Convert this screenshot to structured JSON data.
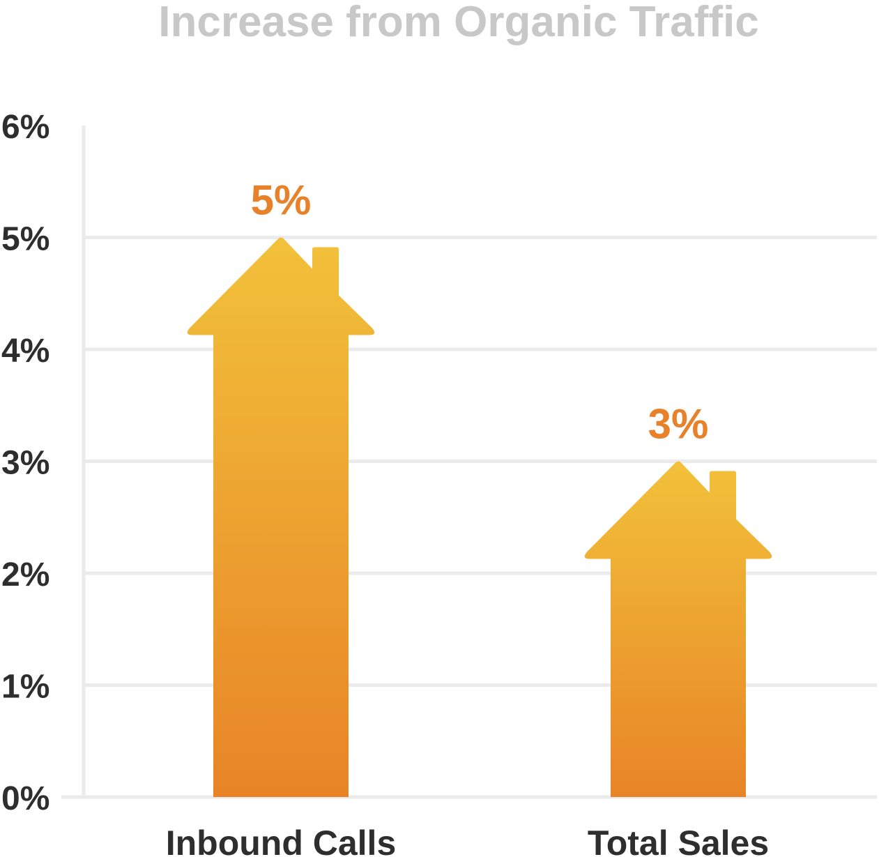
{
  "chart_data": {
    "type": "bar",
    "title": "Increase from Organic Traffic",
    "xlabel": "",
    "ylabel": "",
    "categories": [
      "Inbound Calls",
      "Total Sales"
    ],
    "values": [
      5,
      3
    ],
    "value_labels": [
      "5%",
      "3%"
    ],
    "ylim": [
      0,
      6
    ],
    "yticks": [
      0,
      1,
      2,
      3,
      4,
      5,
      6
    ],
    "ytick_labels": [
      "0%",
      "1%",
      "2%",
      "3%",
      "4%",
      "5%",
      "6%"
    ],
    "grid": true,
    "bar_shape": "house-arrow",
    "colors": {
      "bar_top": "#f2c13a",
      "bar_bottom": "#e88427",
      "value_label": "#e8822a",
      "grid": "#ebebeb",
      "axis_text": "#2e2e2e",
      "title": "#c8c8c8"
    }
  }
}
